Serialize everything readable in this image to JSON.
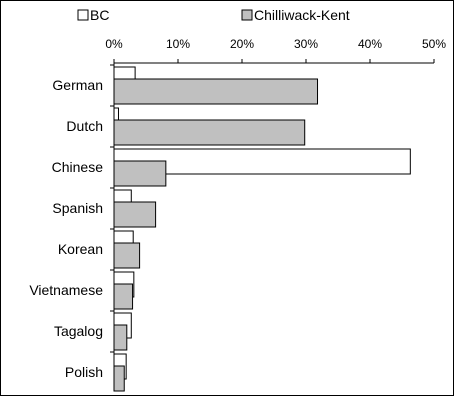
{
  "chart_data": {
    "type": "bar",
    "orientation": "horizontal",
    "categories": [
      "German",
      "Dutch",
      "Chinese",
      "Spanish",
      "Korean",
      "Vietnamese",
      "Tagalog",
      "Polish"
    ],
    "series": [
      {
        "name": "BC",
        "color": "#ffffff",
        "values": [
          3.3,
          0.7,
          46.3,
          2.7,
          3.0,
          3.1,
          2.7,
          1.9
        ]
      },
      {
        "name": "Chilliwack-Kent",
        "color": "#c0c0c0",
        "values": [
          31.8,
          29.8,
          8.1,
          6.5,
          4.0,
          2.9,
          2.0,
          1.6
        ]
      }
    ],
    "x_ticks": [
      "0%",
      "10%",
      "20%",
      "30%",
      "40%",
      "50%"
    ],
    "xlim": [
      0,
      50
    ],
    "axis_position": "top",
    "legend_position": "top",
    "grid": false
  }
}
